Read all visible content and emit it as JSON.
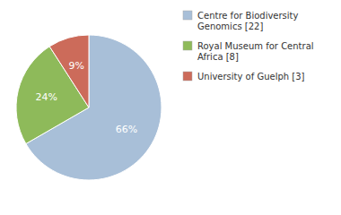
{
  "chart_data": {
    "type": "pie",
    "categories": [
      "Centre for Biodiversity\nGenomics [22]",
      "Royal Museum for Central\nAfrica [8]",
      "University of Guelph [3]"
    ],
    "values": [
      66,
      24,
      9
    ],
    "value_labels": [
      "66%",
      "24%",
      "9%"
    ],
    "data_labels": true,
    "colors": [
      "#a8bfd8",
      "#8eba5a",
      "#cc6b5a"
    ],
    "legend": "right"
  }
}
